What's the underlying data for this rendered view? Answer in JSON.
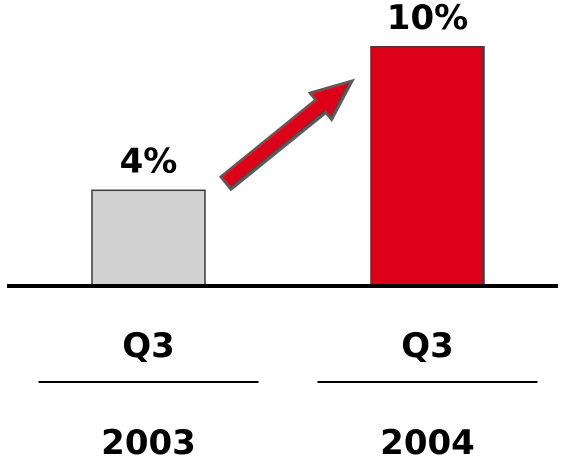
{
  "chart_data": {
    "type": "bar",
    "categories": [
      {
        "period": "Q3",
        "year": "2003"
      },
      {
        "period": "Q3",
        "year": "2004"
      }
    ],
    "values": [
      4,
      10
    ],
    "value_labels": [
      "4%",
      "10%"
    ],
    "unit": "%",
    "ylim": [
      0,
      10.7
    ],
    "grid": false,
    "legend": "none",
    "annotations": [
      "arrow from first bar to second bar indicating increase"
    ],
    "colors": {
      "bar_2003": "#d2d2d2",
      "bar_2004": "#dc0018",
      "arrow_fill": "#dc0018",
      "arrow_stroke": "#5a5a5a",
      "axis": "#000000",
      "text": "#000000"
    }
  }
}
